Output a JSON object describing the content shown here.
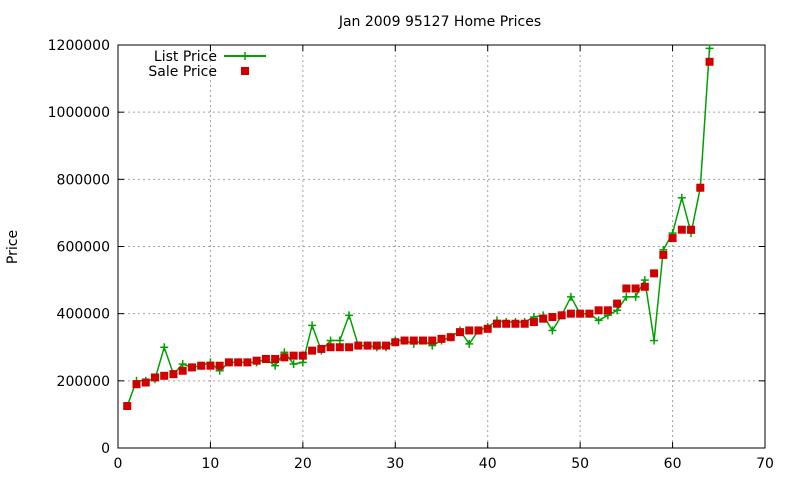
{
  "chart_data": {
    "type": "line",
    "title": "Jan 2009 95127 Home Prices",
    "xlabel": "",
    "ylabel": "Price",
    "xlim": [
      0,
      70
    ],
    "ylim": [
      0,
      1200000
    ],
    "x_ticks": [
      0,
      10,
      20,
      30,
      40,
      50,
      60,
      70
    ],
    "y_ticks": [
      0,
      200000,
      400000,
      600000,
      800000,
      1000000,
      1200000
    ],
    "grid": true,
    "legend_position": "top-left",
    "series": [
      {
        "name": "List Price",
        "style": "line-with-plus-markers",
        "color": "#00a000",
        "x": [
          1,
          2,
          3,
          4,
          5,
          6,
          7,
          8,
          9,
          10,
          11,
          12,
          13,
          14,
          15,
          16,
          17,
          18,
          19,
          20,
          21,
          22,
          23,
          24,
          25,
          26,
          27,
          28,
          29,
          30,
          31,
          32,
          33,
          34,
          35,
          36,
          37,
          38,
          39,
          40,
          41,
          42,
          43,
          44,
          45,
          46,
          47,
          48,
          49,
          50,
          51,
          52,
          53,
          54,
          55,
          56,
          57,
          58,
          59,
          60,
          61,
          62,
          63,
          64
        ],
        "y": [
          125000,
          200000,
          200000,
          205000,
          300000,
          220000,
          250000,
          240000,
          245000,
          255000,
          230000,
          255000,
          255000,
          255000,
          255000,
          265000,
          245000,
          285000,
          250000,
          255000,
          365000,
          290000,
          320000,
          320000,
          395000,
          305000,
          305000,
          300000,
          300000,
          320000,
          320000,
          310000,
          320000,
          305000,
          320000,
          330000,
          350000,
          310000,
          350000,
          360000,
          380000,
          375000,
          375000,
          375000,
          390000,
          395000,
          350000,
          395000,
          450000,
          400000,
          400000,
          380000,
          395000,
          410000,
          450000,
          450000,
          500000,
          320000,
          590000,
          640000,
          745000,
          640000,
          775000,
          1190000
        ]
      },
      {
        "name": "Sale Price",
        "style": "square-markers",
        "color": "#d00000",
        "x": [
          1,
          2,
          3,
          4,
          5,
          6,
          7,
          8,
          9,
          10,
          11,
          12,
          13,
          14,
          15,
          16,
          17,
          18,
          19,
          20,
          21,
          22,
          23,
          24,
          25,
          26,
          27,
          28,
          29,
          30,
          31,
          32,
          33,
          34,
          35,
          36,
          37,
          38,
          39,
          40,
          41,
          42,
          43,
          44,
          45,
          46,
          47,
          48,
          49,
          50,
          51,
          52,
          53,
          54,
          55,
          56,
          57,
          58,
          59,
          60,
          61,
          62,
          63,
          64
        ],
        "y": [
          125000,
          190000,
          195000,
          210000,
          215000,
          220000,
          230000,
          240000,
          245000,
          245000,
          245000,
          255000,
          255000,
          255000,
          260000,
          265000,
          265000,
          270000,
          275000,
          275000,
          290000,
          295000,
          300000,
          300000,
          300000,
          305000,
          305000,
          305000,
          305000,
          315000,
          320000,
          320000,
          320000,
          320000,
          325000,
          330000,
          345000,
          350000,
          350000,
          355000,
          370000,
          370000,
          370000,
          370000,
          375000,
          385000,
          390000,
          395000,
          400000,
          400000,
          400000,
          410000,
          410000,
          430000,
          475000,
          475000,
          480000,
          520000,
          575000,
          625000,
          650000,
          650000,
          775000,
          1150000
        ]
      }
    ]
  }
}
